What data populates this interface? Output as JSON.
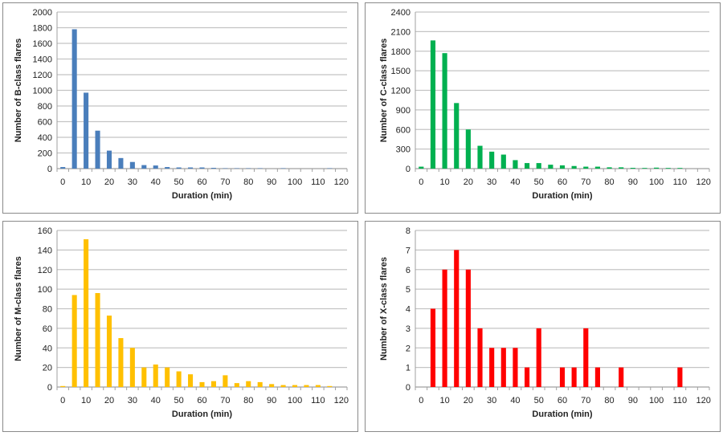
{
  "chart_data": [
    {
      "type": "bar",
      "title": "",
      "xlabel": "Duration (min)",
      "ylabel": "Number of B-class flares",
      "color": "#4a7ebb",
      "x": [
        0,
        5,
        10,
        15,
        20,
        25,
        30,
        35,
        40,
        45,
        50,
        55,
        60,
        65,
        70,
        75,
        80,
        85,
        90,
        95,
        100,
        105,
        110,
        115,
        120
      ],
      "values": [
        20,
        1780,
        970,
        485,
        230,
        135,
        85,
        45,
        40,
        20,
        15,
        15,
        15,
        10,
        5,
        5,
        5,
        5,
        0,
        5,
        0,
        0,
        0,
        5,
        0
      ],
      "ylim": [
        0,
        2000
      ],
      "yticks": [
        0,
        200,
        400,
        600,
        800,
        1000,
        1200,
        1400,
        1600,
        1800,
        2000
      ],
      "xticks": [
        0,
        10,
        20,
        30,
        40,
        50,
        60,
        70,
        80,
        90,
        100,
        110,
        120
      ],
      "grid": true
    },
    {
      "type": "bar",
      "title": "",
      "xlabel": "Duration (min)",
      "ylabel": "Number of C-class flares",
      "color": "#00b050",
      "x": [
        0,
        5,
        10,
        15,
        20,
        25,
        30,
        35,
        40,
        45,
        50,
        55,
        60,
        65,
        70,
        75,
        80,
        85,
        90,
        95,
        100,
        105,
        110,
        115,
        120
      ],
      "values": [
        30,
        1965,
        1770,
        1005,
        600,
        350,
        260,
        215,
        130,
        85,
        85,
        60,
        50,
        40,
        30,
        30,
        20,
        20,
        12,
        10,
        15,
        10,
        10,
        0,
        0
      ],
      "ylim": [
        0,
        2400
      ],
      "yticks": [
        0,
        300,
        600,
        900,
        1200,
        1500,
        1800,
        2100,
        2400
      ],
      "xticks": [
        0,
        10,
        20,
        30,
        40,
        50,
        60,
        70,
        80,
        90,
        100,
        110,
        120
      ],
      "grid": true
    },
    {
      "type": "bar",
      "title": "",
      "xlabel": "Duration (min)",
      "ylabel": "Number of M-class flares",
      "color": "#ffc000",
      "x": [
        0,
        5,
        10,
        15,
        20,
        25,
        30,
        35,
        40,
        45,
        50,
        55,
        60,
        65,
        70,
        75,
        80,
        85,
        90,
        95,
        100,
        105,
        110,
        115,
        120
      ],
      "values": [
        1,
        94,
        151,
        96,
        73,
        50,
        40,
        20,
        23,
        20,
        16,
        13,
        5,
        6,
        12,
        4,
        6,
        5,
        3,
        2,
        2,
        2,
        2,
        1,
        0
      ],
      "ylim": [
        0,
        160
      ],
      "yticks": [
        0,
        20,
        40,
        60,
        80,
        100,
        120,
        140,
        160
      ],
      "xticks": [
        0,
        10,
        20,
        30,
        40,
        50,
        60,
        70,
        80,
        90,
        100,
        110,
        120
      ],
      "grid": true
    },
    {
      "type": "bar",
      "title": "",
      "xlabel": "Duration (min)",
      "ylabel": "Number of X-class flares",
      "color": "#ff0000",
      "x": [
        0,
        5,
        10,
        15,
        20,
        25,
        30,
        35,
        40,
        45,
        50,
        55,
        60,
        65,
        70,
        75,
        80,
        85,
        90,
        95,
        100,
        105,
        110,
        115,
        120
      ],
      "values": [
        0,
        4,
        6,
        7,
        6,
        3,
        2,
        2,
        2,
        1,
        3,
        0,
        1,
        1,
        3,
        1,
        0,
        1,
        0,
        0,
        0,
        0,
        1,
        0,
        0
      ],
      "ylim": [
        0,
        8
      ],
      "yticks": [
        0,
        1,
        2,
        3,
        4,
        5,
        6,
        7,
        8
      ],
      "xticks": [
        0,
        10,
        20,
        30,
        40,
        50,
        60,
        70,
        80,
        90,
        100,
        110,
        120
      ],
      "grid": true
    }
  ]
}
